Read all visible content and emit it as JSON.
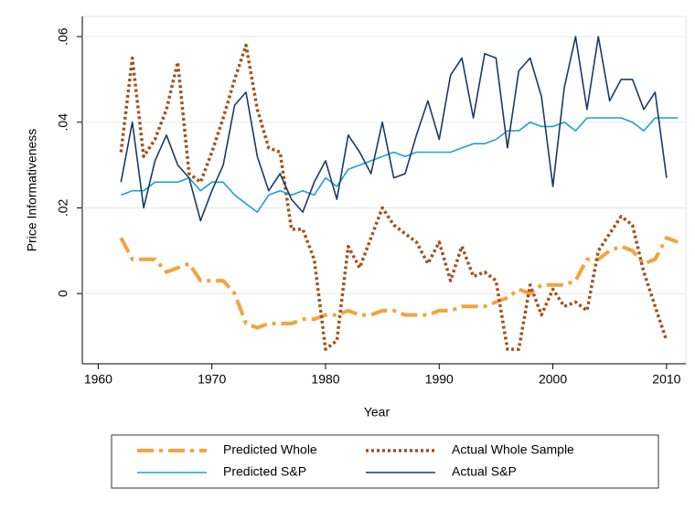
{
  "chart_data": {
    "type": "line",
    "xlabel": "Year",
    "ylabel": "Price Informativeness",
    "x": [
      1962,
      1963,
      1964,
      1965,
      1966,
      1967,
      1968,
      1969,
      1970,
      1971,
      1972,
      1973,
      1974,
      1975,
      1976,
      1977,
      1978,
      1979,
      1980,
      1981,
      1982,
      1983,
      1984,
      1985,
      1986,
      1987,
      1988,
      1989,
      1990,
      1991,
      1992,
      1993,
      1994,
      1995,
      1996,
      1997,
      1998,
      1999,
      2000,
      2001,
      2002,
      2003,
      2004,
      2005,
      2006,
      2007,
      2008,
      2009,
      2010,
      2011
    ],
    "xlim": [
      1958.6,
      2011.7
    ],
    "xticks": [
      1960,
      1970,
      1980,
      1990,
      2000,
      2010
    ],
    "ylim": [
      -0.0164,
      0.0647
    ],
    "yticks": [
      0,
      {
        "value": 0.02,
        "label": ".02"
      },
      {
        "value": 0.04,
        "label": ".04"
      },
      {
        "value": 0.06,
        "label": ".06"
      }
    ],
    "grid": true,
    "legend": "bottom",
    "series": [
      {
        "name": "Predicted Whole",
        "color": "#f5a33c",
        "dash": "dashdot",
        "values": [
          0.013,
          0.008,
          0.008,
          0.008,
          0.005,
          0.006,
          0.007,
          0.003,
          0.003,
          0.003,
          0.0,
          -0.007,
          -0.008,
          -0.007,
          -0.007,
          -0.007,
          -0.006,
          -0.006,
          -0.005,
          -0.005,
          -0.004,
          -0.005,
          -0.005,
          -0.004,
          -0.004,
          -0.005,
          -0.005,
          -0.005,
          -0.004,
          -0.004,
          -0.003,
          -0.003,
          -0.003,
          -0.002,
          -0.001,
          0.001,
          0.0,
          0.002,
          0.002,
          0.002,
          0.003,
          0.008,
          0.008,
          0.01,
          0.011,
          0.01,
          0.007,
          0.008,
          0.013,
          0.012
        ]
      },
      {
        "name": "Actual Whole Sample",
        "color": "#a3511d",
        "dash": "dot",
        "values": [
          0.033,
          0.055,
          0.032,
          0.036,
          0.043,
          0.054,
          0.028,
          0.026,
          0.033,
          0.041,
          0.05,
          0.058,
          0.043,
          0.034,
          0.033,
          0.015,
          0.015,
          0.008,
          -0.013,
          -0.011,
          0.011,
          0.006,
          0.013,
          0.02,
          0.016,
          0.014,
          0.012,
          0.007,
          0.012,
          0.003,
          0.011,
          0.004,
          0.005,
          0.003,
          -0.013,
          -0.013,
          0.002,
          -0.005,
          0.001,
          -0.003,
          -0.002,
          -0.004,
          0.01,
          0.014,
          0.018,
          0.016,
          0.005,
          -0.003,
          -0.011,
          null
        ]
      },
      {
        "name": "Predicted S&P",
        "color": "#1f9fd5",
        "dash": "solid",
        "values": [
          0.023,
          0.024,
          0.024,
          0.026,
          0.026,
          0.026,
          0.027,
          0.024,
          0.026,
          0.026,
          0.023,
          0.021,
          0.019,
          0.023,
          0.024,
          0.023,
          0.024,
          0.023,
          0.027,
          0.025,
          0.029,
          0.03,
          0.031,
          0.032,
          0.033,
          0.032,
          0.033,
          0.033,
          0.033,
          0.033,
          0.034,
          0.035,
          0.035,
          0.036,
          0.038,
          0.038,
          0.04,
          0.039,
          0.039,
          0.04,
          0.038,
          0.041,
          0.041,
          0.041,
          0.041,
          0.04,
          0.038,
          0.041,
          0.041,
          0.041
        ]
      },
      {
        "name": "Actual S&P",
        "color": "#1b3a66",
        "dash": "solid",
        "values": [
          0.026,
          0.04,
          0.02,
          0.031,
          0.037,
          0.03,
          0.027,
          0.017,
          0.024,
          0.03,
          0.044,
          0.047,
          0.032,
          0.024,
          0.028,
          0.022,
          0.019,
          0.026,
          0.031,
          0.022,
          0.037,
          0.033,
          0.028,
          0.04,
          0.027,
          0.028,
          0.037,
          0.045,
          0.036,
          0.051,
          0.055,
          0.041,
          0.056,
          0.055,
          0.034,
          0.052,
          0.055,
          0.046,
          0.025,
          0.048,
          0.06,
          0.043,
          0.06,
          0.045,
          0.05,
          0.05,
          0.043,
          0.047,
          0.027,
          null
        ]
      }
    ]
  }
}
